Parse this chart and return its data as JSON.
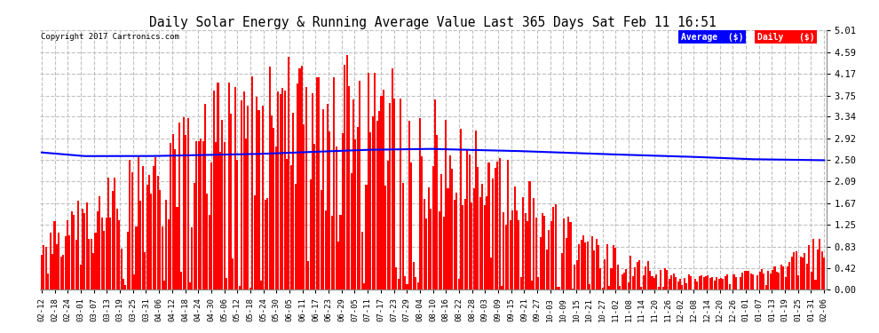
{
  "title": "Daily Solar Energy & Running Average Value Last 365 Days Sat Feb 11 16:51",
  "copyright": "Copyright 2017 Cartronics.com",
  "bar_color": "#ff0000",
  "avg_color": "#0000ff",
  "background_color": "#ffffff",
  "grid_color": "#c0c0c0",
  "yticks": [
    0.0,
    0.42,
    0.83,
    1.25,
    1.67,
    2.09,
    2.5,
    2.92,
    3.34,
    3.75,
    4.17,
    4.59,
    5.01
  ],
  "legend_avg_bg": "#0000ff",
  "legend_daily_bg": "#ff0000",
  "legend_avg_text": "Average  ($)",
  "legend_daily_text": "Daily   ($)",
  "x_labels": [
    "02-12",
    "02-18",
    "02-24",
    "03-01",
    "03-07",
    "03-13",
    "03-19",
    "03-25",
    "03-31",
    "04-06",
    "04-12",
    "04-18",
    "04-24",
    "04-30",
    "05-06",
    "05-12",
    "05-18",
    "05-24",
    "05-30",
    "06-05",
    "06-11",
    "06-17",
    "06-23",
    "06-29",
    "07-05",
    "07-11",
    "07-17",
    "07-23",
    "07-29",
    "08-04",
    "08-10",
    "08-16",
    "08-22",
    "08-28",
    "09-03",
    "09-09",
    "09-15",
    "09-21",
    "09-27",
    "10-03",
    "10-09",
    "10-15",
    "10-21",
    "10-27",
    "11-02",
    "11-08",
    "11-14",
    "11-20",
    "11-26",
    "12-02",
    "12-08",
    "12-14",
    "12-20",
    "12-26",
    "01-01",
    "01-07",
    "01-13",
    "01-19",
    "01-25",
    "01-31",
    "02-06"
  ],
  "n_days": 365,
  "ymax": 5.01,
  "ymin": 0.0,
  "avg_points_x": [
    0,
    20,
    50,
    100,
    150,
    180,
    220,
    260,
    300,
    330,
    364
  ],
  "avg_points_y": [
    2.65,
    2.58,
    2.58,
    2.62,
    2.7,
    2.72,
    2.68,
    2.62,
    2.57,
    2.52,
    2.5
  ]
}
